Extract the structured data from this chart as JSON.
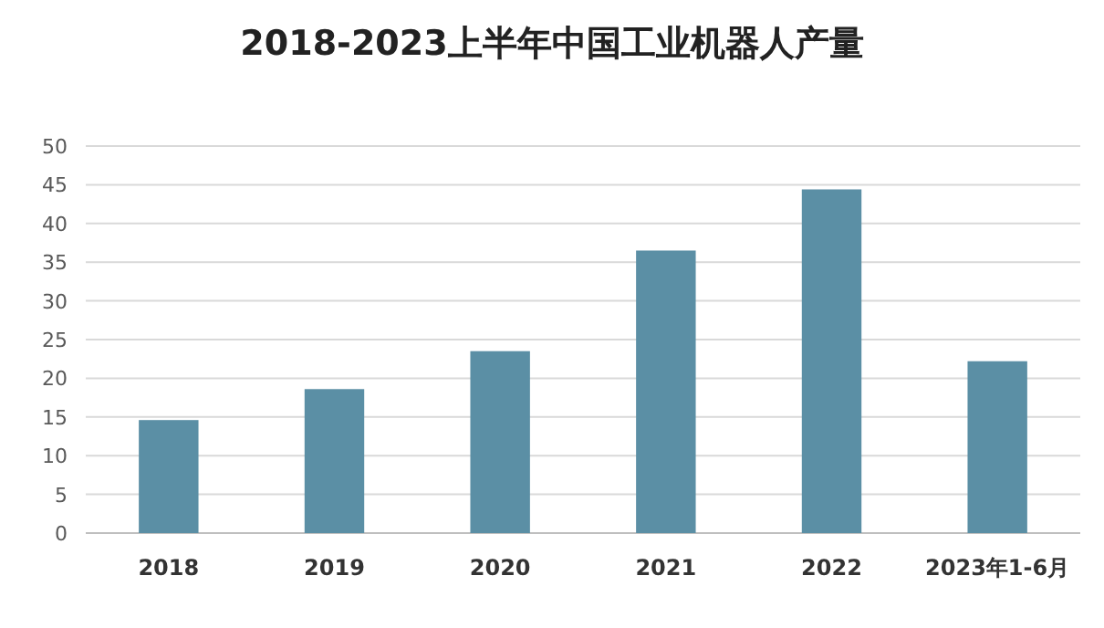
{
  "chart_data": {
    "type": "bar",
    "title": "2018-2023上半年中国工业机器人产量",
    "categories": [
      "2018",
      "2019",
      "2020",
      "2021",
      "2022",
      "2023年1-6月"
    ],
    "series": [
      {
        "color": "#5b8fa5",
        "values": [
          14.6,
          18.6,
          23.5,
          36.5,
          44.4,
          22.2
        ]
      }
    ],
    "ylim": [
      0,
      50
    ],
    "yticks": [
      0,
      5,
      10,
      15,
      20,
      25,
      30,
      35,
      40,
      45,
      50
    ],
    "grid": "y"
  }
}
